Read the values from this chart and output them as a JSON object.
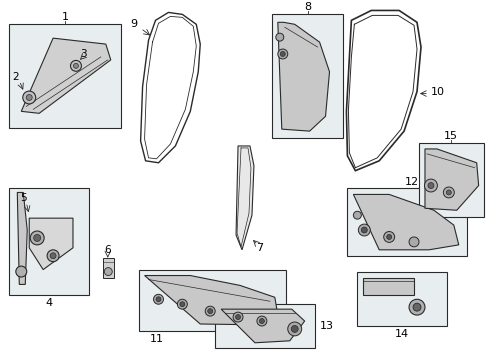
{
  "bg_color": "#ffffff",
  "lc": "#2a2a2a",
  "box_fill": "#e8eef0",
  "part_fill": "#ffffff",
  "fig_w": 4.9,
  "fig_h": 3.6,
  "dpi": 100
}
